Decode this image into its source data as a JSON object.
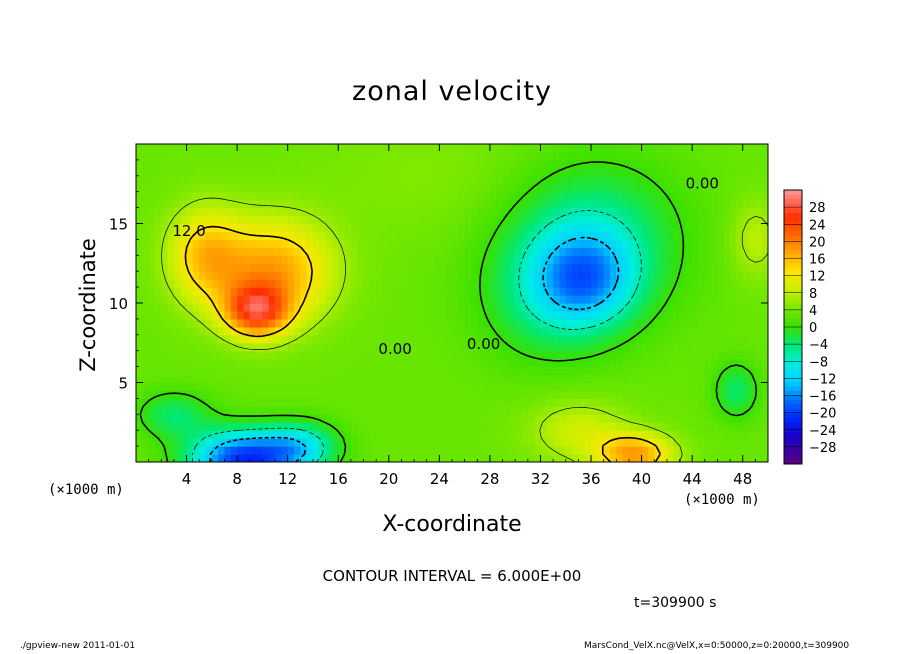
{
  "chart_data": {
    "type": "heatmap",
    "title": "zonal velocity",
    "xlabel": "X-coordinate",
    "ylabel": "Z-coordinate",
    "x_unit_label": "(×1000 m)",
    "x_unit_label_right": "(×1000 m)",
    "xlim": [
      0,
      50
    ],
    "ylim": [
      0,
      20
    ],
    "x_ticks": [
      4,
      8,
      12,
      16,
      20,
      24,
      28,
      32,
      36,
      40,
      44,
      48
    ],
    "y_ticks": [
      5,
      10,
      15
    ],
    "contour_interval_text": "CONTOUR INTERVAL = 6.000E+00",
    "time_text": "t=309900 s",
    "contour_labels": [
      {
        "text": "12.0",
        "x": 4.2,
        "y": 14.2
      },
      {
        "text": "0.00",
        "x": 20.5,
        "y": 6.8
      },
      {
        "text": "0.00",
        "x": 27.5,
        "y": 7.1
      },
      {
        "text": "0.00",
        "x": 44.8,
        "y": 17.2
      }
    ],
    "colorbar_levels": [
      "28",
      "24",
      "20",
      "16",
      "12",
      "8",
      "4",
      "0",
      "−4",
      "−8",
      "−12",
      "−16",
      "−20",
      "−24",
      "−28"
    ],
    "colorbar_range": [
      -30,
      30
    ],
    "features": [
      {
        "x": 11,
        "y": 12,
        "value": 14,
        "sx": 4.5,
        "sy": 3.2
      },
      {
        "x": 9.5,
        "y": 9.5,
        "value": 18,
        "sx": 2.5,
        "sy": 1.6
      },
      {
        "x": 5.5,
        "y": 13,
        "value": 11,
        "sx": 3,
        "sy": 3
      },
      {
        "x": 8.5,
        "y": 0.2,
        "value": -22,
        "sx": 4.2,
        "sy": 1.8
      },
      {
        "x": 13,
        "y": 1,
        "value": -10,
        "sx": 3,
        "sy": 1.5
      },
      {
        "x": 3,
        "y": 3,
        "value": -6,
        "sx": 3,
        "sy": 1.5
      },
      {
        "x": 35.5,
        "y": 11.5,
        "value": -12,
        "sx": 4,
        "sy": 3
      },
      {
        "x": 36,
        "y": 14,
        "value": -8,
        "sx": 7,
        "sy": 5
      },
      {
        "x": 32,
        "y": 10,
        "value": -4,
        "sx": 5,
        "sy": 4
      },
      {
        "x": 39.5,
        "y": 0.5,
        "value": 14,
        "sx": 3,
        "sy": 1.3
      },
      {
        "x": 35,
        "y": 2,
        "value": 6,
        "sx": 4,
        "sy": 2
      },
      {
        "x": 47.5,
        "y": 4.5,
        "value": -6,
        "sx": 1.8,
        "sy": 1.8
      },
      {
        "x": 49,
        "y": 14,
        "value": 5,
        "sx": 2,
        "sy": 2.5
      },
      {
        "x": 24,
        "y": 18,
        "value": 2,
        "sx": 10,
        "sy": 4
      }
    ],
    "background_value": 3,
    "colormap": [
      {
        "v": -30,
        "c": "#5a007a"
      },
      {
        "v": -24,
        "c": "#1a00c8"
      },
      {
        "v": -20,
        "c": "#0028ff"
      },
      {
        "v": -16,
        "c": "#0070ff"
      },
      {
        "v": -12,
        "c": "#00d0ff"
      },
      {
        "v": -8,
        "c": "#00eee0"
      },
      {
        "v": -4,
        "c": "#00e878"
      },
      {
        "v": 0,
        "c": "#38e000"
      },
      {
        "v": 4,
        "c": "#78e800"
      },
      {
        "v": 8,
        "c": "#c8f000"
      },
      {
        "v": 12,
        "c": "#ffe600"
      },
      {
        "v": 16,
        "c": "#ffaa00"
      },
      {
        "v": 20,
        "c": "#ff6a00"
      },
      {
        "v": 24,
        "c": "#ff2e00"
      },
      {
        "v": 30,
        "c": "#ff9aa0"
      }
    ]
  },
  "footer": {
    "left": "./gpview-new   2011-01-01",
    "right": "MarsCond_VelX.nc@VelX,x=0:50000,z=0:20000,t=309900"
  }
}
